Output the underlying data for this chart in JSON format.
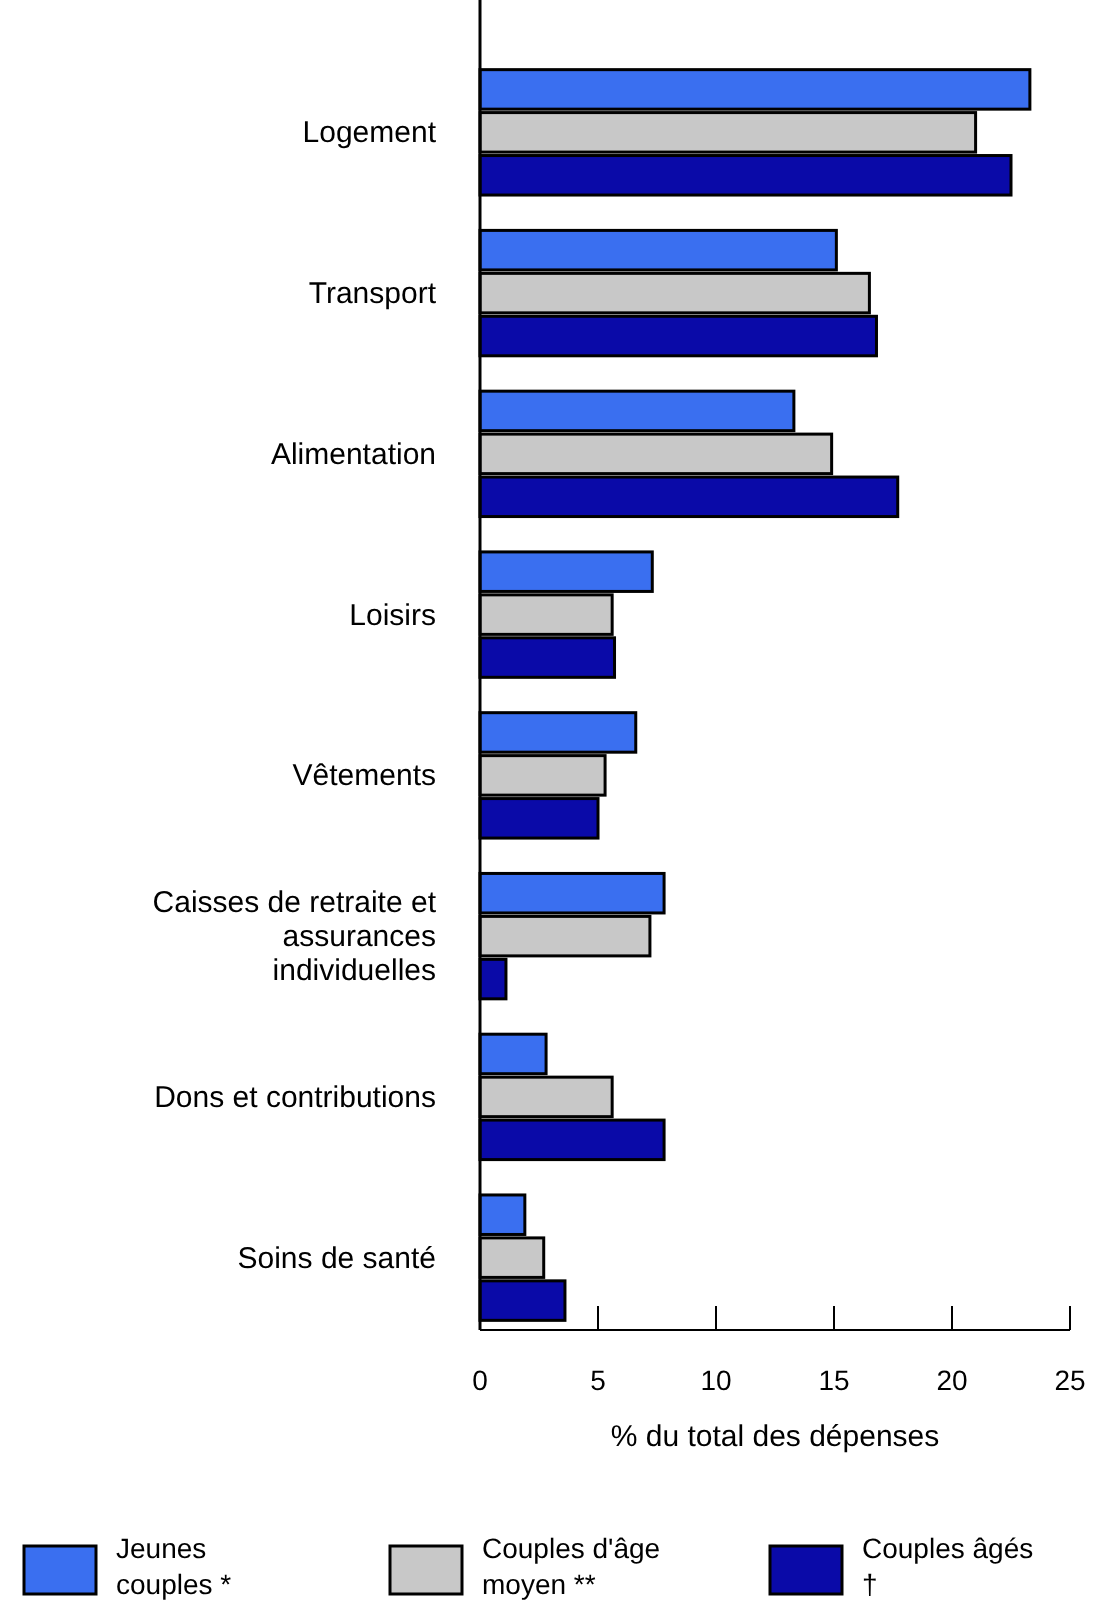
{
  "chart_data": {
    "type": "bar",
    "orientation": "horizontal",
    "categories": [
      "Logement",
      "Transport",
      "Alimentation",
      "Loisirs",
      "Vêtements",
      "Caisses de retraite et assurances individuelles",
      "Dons et contributions",
      "Soins de santé"
    ],
    "series": [
      {
        "name": "Jeunes couples *",
        "color": "#3a6ff0",
        "values": [
          23.3,
          15.1,
          13.3,
          7.3,
          6.6,
          7.8,
          2.8,
          1.9
        ]
      },
      {
        "name": "Couples d'âge moyen **",
        "color": "#c8c8c8",
        "values": [
          21.0,
          16.5,
          14.9,
          5.6,
          5.3,
          7.2,
          5.6,
          2.7
        ]
      },
      {
        "name": "Couples âgés †",
        "color": "#0a0aa8",
        "values": [
          22.5,
          16.8,
          17.7,
          5.7,
          5.0,
          1.1,
          7.8,
          3.6
        ]
      }
    ],
    "xlim": [
      0,
      25
    ],
    "xticks": [
      0,
      5,
      10,
      15,
      20,
      25
    ],
    "xlabel": "% du total des dépenses",
    "legend": "bottom",
    "grid": false
  }
}
